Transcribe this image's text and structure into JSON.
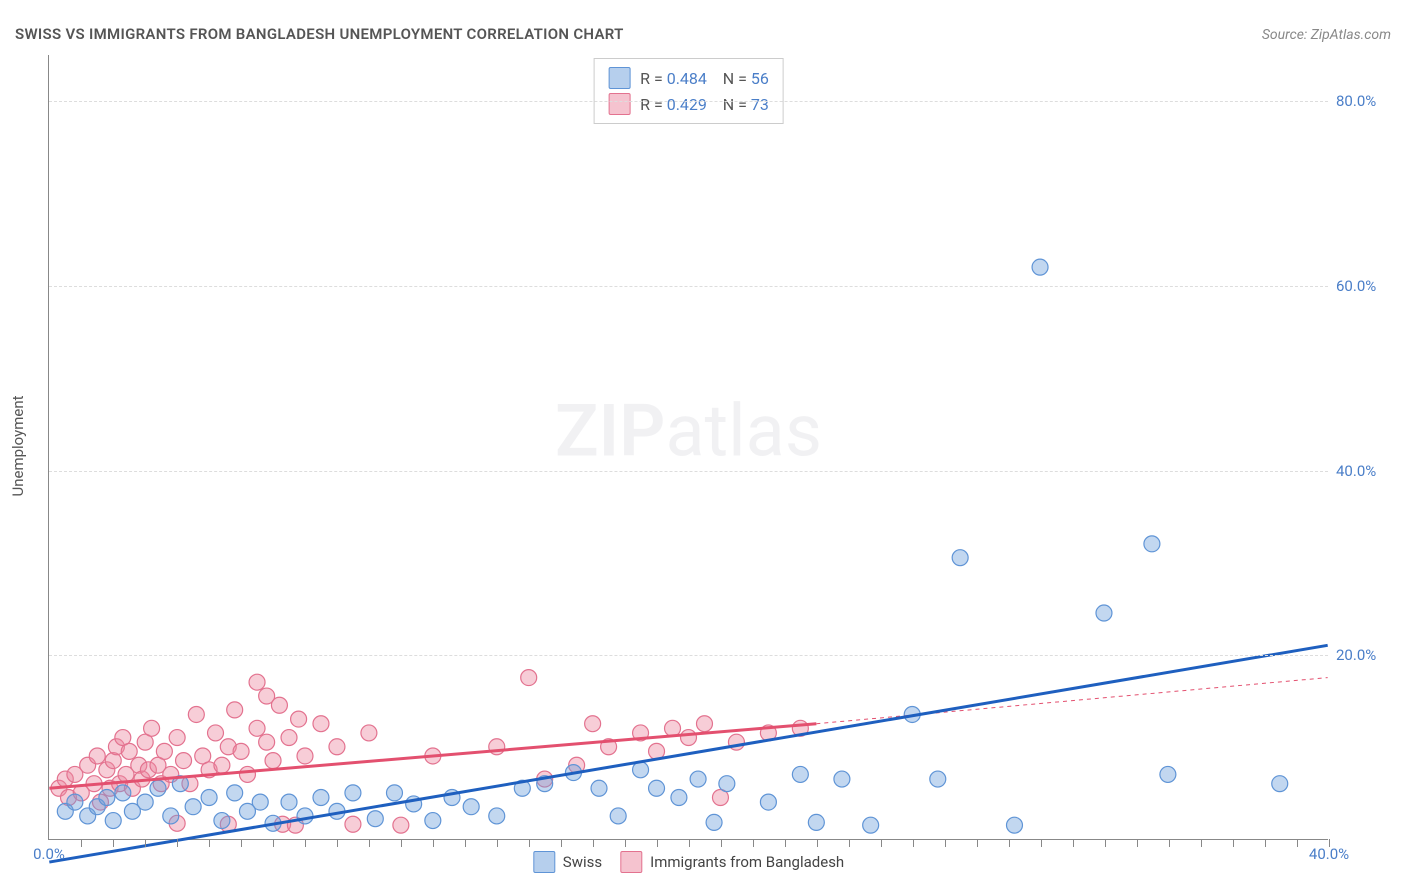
{
  "title": "SWISS VS IMMIGRANTS FROM BANGLADESH UNEMPLOYMENT CORRELATION CHART",
  "source": "Source: ZipAtlas.com",
  "ylabel": "Unemployment",
  "watermark_bold": "ZIP",
  "watermark_rest": "atlas",
  "plot": {
    "type": "scatter",
    "xlim": [
      0,
      40
    ],
    "ylim": [
      0,
      85
    ],
    "xticks_minor": [
      1,
      2,
      3,
      4,
      5,
      6,
      7,
      8,
      9,
      10,
      11,
      12,
      13,
      14,
      15,
      16,
      17,
      18,
      19,
      20,
      21,
      22,
      23,
      24,
      25,
      26,
      27,
      28,
      29,
      30,
      31,
      32,
      33,
      34,
      35,
      36,
      37,
      38,
      39,
      40
    ],
    "xtick_labels": {
      "0": "0.0%",
      "40": "40.0%"
    },
    "ytick_gridlines": [
      20,
      40,
      60,
      80
    ],
    "ytick_labels": {
      "20": "20.0%",
      "40": "40.0%",
      "60": "60.0%",
      "80": "80.0%"
    },
    "background_color": "#ffffff",
    "grid_color": "#dddddd",
    "axis_color": "#888888",
    "marker_radius": 8,
    "marker_stroke_width": 1.2,
    "line_width_solid": 3,
    "line_width_dashed": 1,
    "dash": "4,4"
  },
  "series": {
    "blue": {
      "label": "Swiss",
      "r_label": "R =",
      "r_value": "0.484",
      "n_label": "N =",
      "n_value": "56",
      "fill": "rgba(110,160,220,0.42)",
      "stroke": "#5f94d6",
      "line_color": "#1e5fbf",
      "trend_solid": {
        "x1": 0,
        "y1": -2.5,
        "x2": 40,
        "y2": 21
      },
      "trend_dash": {
        "x1": 0,
        "y1": -2.5,
        "x2": 40,
        "y2": 21
      },
      "points": [
        [
          0.5,
          3.0
        ],
        [
          0.8,
          4.0
        ],
        [
          1.2,
          2.5
        ],
        [
          1.5,
          3.5
        ],
        [
          1.8,
          4.5
        ],
        [
          2.0,
          2.0
        ],
        [
          2.3,
          5.0
        ],
        [
          2.6,
          3.0
        ],
        [
          3.0,
          4.0
        ],
        [
          3.4,
          5.5
        ],
        [
          3.8,
          2.5
        ],
        [
          4.1,
          6.0
        ],
        [
          4.5,
          3.5
        ],
        [
          5.0,
          4.5
        ],
        [
          5.4,
          2.0
        ],
        [
          5.8,
          5.0
        ],
        [
          6.2,
          3.0
        ],
        [
          6.6,
          4.0
        ],
        [
          7.0,
          1.7
        ],
        [
          7.5,
          4.0
        ],
        [
          8.0,
          2.5
        ],
        [
          8.5,
          4.5
        ],
        [
          9.0,
          3.0
        ],
        [
          9.5,
          5.0
        ],
        [
          10.2,
          2.2
        ],
        [
          10.8,
          5.0
        ],
        [
          11.4,
          3.8
        ],
        [
          12.0,
          2.0
        ],
        [
          12.6,
          4.5
        ],
        [
          13.2,
          3.5
        ],
        [
          14.0,
          2.5
        ],
        [
          14.8,
          5.5
        ],
        [
          15.5,
          6.0
        ],
        [
          16.4,
          7.2
        ],
        [
          17.2,
          5.5
        ],
        [
          17.8,
          2.5
        ],
        [
          18.5,
          7.5
        ],
        [
          19.0,
          5.5
        ],
        [
          19.7,
          4.5
        ],
        [
          20.3,
          6.5
        ],
        [
          20.8,
          1.8
        ],
        [
          21.2,
          6.0
        ],
        [
          22.5,
          4.0
        ],
        [
          23.5,
          7.0
        ],
        [
          24.0,
          1.8
        ],
        [
          24.8,
          6.5
        ],
        [
          25.7,
          1.5
        ],
        [
          27.0,
          13.5
        ],
        [
          27.8,
          6.5
        ],
        [
          28.5,
          30.5
        ],
        [
          30.2,
          1.5
        ],
        [
          31.0,
          62.0
        ],
        [
          33.0,
          24.5
        ],
        [
          34.5,
          32.0
        ],
        [
          35.0,
          7.0
        ],
        [
          38.5,
          6.0
        ]
      ]
    },
    "pink": {
      "label": "Immigrants from Bangladesh",
      "r_label": "R =",
      "r_value": "0.429",
      "n_label": "N =",
      "n_value": "73",
      "fill": "rgba(235,135,160,0.42)",
      "stroke": "#e3728f",
      "line_color": "#e3506f",
      "trend_solid": {
        "x1": 0,
        "y1": 5.5,
        "x2": 24,
        "y2": 12.5
      },
      "trend_dash": {
        "x1": 24,
        "y1": 12.5,
        "x2": 40,
        "y2": 17.5
      },
      "points": [
        [
          0.3,
          5.5
        ],
        [
          0.5,
          6.5
        ],
        [
          0.6,
          4.5
        ],
        [
          0.8,
          7.0
        ],
        [
          1.0,
          5.0
        ],
        [
          1.2,
          8.0
        ],
        [
          1.4,
          6.0
        ],
        [
          1.5,
          9.0
        ],
        [
          1.6,
          4.0
        ],
        [
          1.8,
          7.5
        ],
        [
          1.9,
          5.5
        ],
        [
          2.0,
          8.5
        ],
        [
          2.1,
          10.0
        ],
        [
          2.2,
          6.0
        ],
        [
          2.3,
          11.0
        ],
        [
          2.4,
          7.0
        ],
        [
          2.5,
          9.5
        ],
        [
          2.6,
          5.5
        ],
        [
          2.8,
          8.0
        ],
        [
          2.9,
          6.5
        ],
        [
          3.0,
          10.5
        ],
        [
          3.1,
          7.5
        ],
        [
          3.2,
          12.0
        ],
        [
          3.4,
          8.0
        ],
        [
          3.5,
          6.0
        ],
        [
          3.6,
          9.5
        ],
        [
          3.8,
          7.0
        ],
        [
          4.0,
          1.7
        ],
        [
          4.0,
          11.0
        ],
        [
          4.2,
          8.5
        ],
        [
          4.4,
          6.0
        ],
        [
          4.6,
          13.5
        ],
        [
          4.8,
          9.0
        ],
        [
          5.0,
          7.5
        ],
        [
          5.2,
          11.5
        ],
        [
          5.4,
          8.0
        ],
        [
          5.6,
          1.6
        ],
        [
          5.6,
          10.0
        ],
        [
          5.8,
          14.0
        ],
        [
          6.0,
          9.5
        ],
        [
          6.2,
          7.0
        ],
        [
          6.5,
          17.0
        ],
        [
          6.5,
          12.0
        ],
        [
          6.8,
          10.5
        ],
        [
          6.8,
          15.5
        ],
        [
          7.0,
          8.5
        ],
        [
          7.2,
          14.5
        ],
        [
          7.3,
          1.6
        ],
        [
          7.5,
          11.0
        ],
        [
          7.7,
          1.5
        ],
        [
          7.8,
          13.0
        ],
        [
          8.0,
          9.0
        ],
        [
          8.5,
          12.5
        ],
        [
          9.0,
          10.0
        ],
        [
          9.5,
          1.6
        ],
        [
          10.0,
          11.5
        ],
        [
          11.0,
          1.5
        ],
        [
          12.0,
          9.0
        ],
        [
          14.0,
          10.0
        ],
        [
          15.0,
          17.5
        ],
        [
          15.5,
          6.5
        ],
        [
          16.5,
          8.0
        ],
        [
          17.0,
          12.5
        ],
        [
          17.5,
          10.0
        ],
        [
          18.5,
          11.5
        ],
        [
          19.0,
          9.5
        ],
        [
          19.5,
          12.0
        ],
        [
          20.0,
          11.0
        ],
        [
          20.5,
          12.5
        ],
        [
          21.5,
          10.5
        ],
        [
          22.5,
          11.5
        ],
        [
          23.5,
          12.0
        ],
        [
          21.0,
          4.5
        ]
      ]
    }
  }
}
